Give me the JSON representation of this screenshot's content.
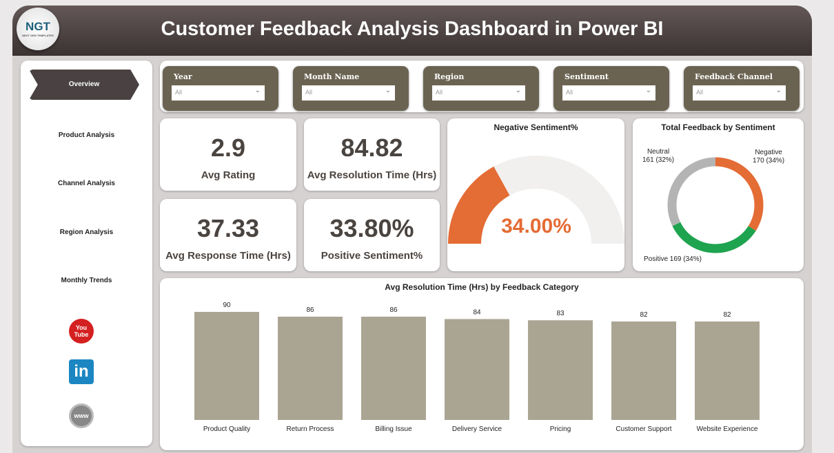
{
  "header": {
    "title": "Customer Feedback Analysis Dashboard in Power BI",
    "logo_text": "NGT",
    "logo_sub": "NEXT GEN TEMPLATES"
  },
  "sidebar": {
    "items": [
      {
        "label": "Overview",
        "active": true
      },
      {
        "label": "Product Analysis"
      },
      {
        "label": "Channel Analysis"
      },
      {
        "label": "Region Analysis"
      },
      {
        "label": "Monthly Trends"
      }
    ],
    "social": [
      {
        "icon": "youtube-icon",
        "text": "You Tube"
      },
      {
        "icon": "linkedin-icon",
        "text": "in"
      },
      {
        "icon": "globe-icon",
        "text": "www"
      }
    ]
  },
  "filters": [
    {
      "label": "Year",
      "value": "All"
    },
    {
      "label": "Month Name",
      "value": "All"
    },
    {
      "label": "Region",
      "value": "All"
    },
    {
      "label": "Sentiment",
      "value": "All"
    },
    {
      "label": "Feedback Channel",
      "value": "All"
    }
  ],
  "kpis": [
    {
      "value": "2.9",
      "label": "Avg Rating"
    },
    {
      "value": "84.82",
      "label": "Avg Resolution Time (Hrs)"
    },
    {
      "value": "37.33",
      "label": "Avg Response Time (Hrs)"
    },
    {
      "value": "33.80%",
      "label": "Positive Sentiment%"
    }
  ],
  "chart_data": [
    {
      "type": "gauge",
      "title": "Negative Sentiment%",
      "value": 34.0,
      "value_label": "34.00%",
      "range": [
        0,
        100
      ],
      "colors": {
        "fill": "#e46c35",
        "track": "#f1f0ef"
      }
    },
    {
      "type": "pie",
      "title": "Total Feedback by Sentiment",
      "donut": true,
      "slices": [
        {
          "name": "Negative",
          "value": 170,
          "label": "170 (34%)",
          "color": "#e46c35"
        },
        {
          "name": "Positive",
          "value": 169,
          "label": "169 (34%)",
          "color": "#1ea34f"
        },
        {
          "name": "Neutral",
          "value": 161,
          "label": "161 (32%)",
          "color": "#b4b4b4"
        }
      ]
    },
    {
      "type": "bar",
      "title": "Avg Resolution Time (Hrs) by Feedback Category",
      "categories": [
        "Product Quality",
        "Return Process",
        "Billing Issue",
        "Delivery Service",
        "Pricing",
        "Customer Support",
        "Website Experience"
      ],
      "values": [
        90,
        86,
        86,
        84,
        83,
        82,
        82
      ],
      "ylim": [
        0,
        90
      ],
      "color": "#aaa593",
      "grid": false
    }
  ]
}
